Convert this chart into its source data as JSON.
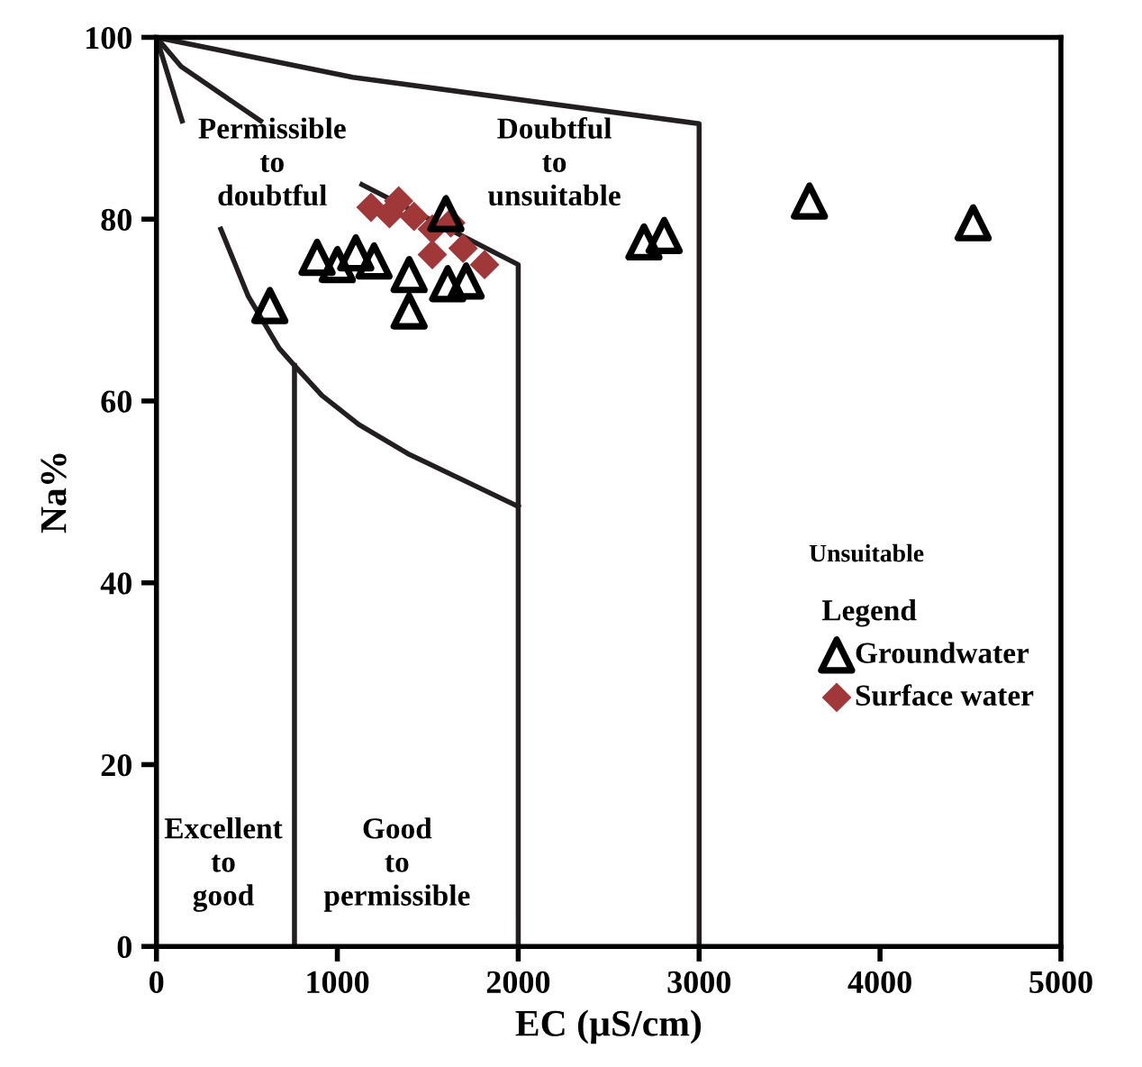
{
  "chart_data": {
    "type": "scatter",
    "xlabel": "EC (µS/cm)",
    "ylabel": "Na%",
    "xlim": [
      0,
      5000
    ],
    "ylim": [
      0,
      100
    ],
    "xticks": [
      0,
      1000,
      2000,
      3000,
      4000,
      5000
    ],
    "yticks": [
      0,
      20,
      40,
      60,
      80,
      100
    ],
    "grid": false,
    "legend": "right",
    "legend_title": "Legend",
    "series": [
      {
        "name": "Groundwater",
        "marker": "triangle",
        "color": "#000000",
        "x": [
          627,
          888,
          1000,
          1102,
          1203,
          1397,
          1397,
          1610,
          1712,
          1600,
          2695,
          2807,
          3610,
          4515
        ],
        "values": [
          70.5,
          75.8,
          75,
          76.3,
          75.4,
          73.9,
          69.9,
          72.9,
          73.2,
          80.6,
          77.5,
          78.2,
          82,
          79.6
        ]
      },
      {
        "name": "Surface water",
        "marker": "diamond",
        "color": "#a0383a",
        "x": [
          1186,
          1288,
          1339,
          1424,
          1525,
          1525,
          1627,
          1695,
          1814
        ],
        "values": [
          81.3,
          80.6,
          82,
          80.3,
          78.9,
          76.1,
          79.6,
          76.8,
          75
        ]
      },
      {
        "type": "line",
        "marker": "none",
        "color": "#231f20",
        "x": [
          0,
          1085,
          3000,
          3000
        ],
        "values": [
          100,
          95.6,
          90.5,
          0
        ]
      },
      {
        "type": "line",
        "marker": "none",
        "color": "#231f20",
        "x": [
          0,
          136,
          576
        ],
        "values": [
          100,
          96.8,
          90.8
        ]
      },
      {
        "type": "line",
        "marker": "none",
        "color": "#231f20",
        "x": [
          0,
          142
        ],
        "values": [
          100,
          90.8
        ]
      },
      {
        "type": "line",
        "marker": "none",
        "color": "#231f20",
        "x": [
          356,
          508,
          678,
          763,
          915,
          1119,
          1390,
          2000
        ],
        "values": [
          78.9,
          71.5,
          65.8,
          63.9,
          60.6,
          57.4,
          54.2,
          48.4
        ]
      },
      {
        "type": "line",
        "marker": "none",
        "color": "#231f20",
        "x": [
          763,
          763
        ],
        "values": [
          63.9,
          0
        ]
      },
      {
        "type": "line",
        "marker": "none",
        "color": "#231f20",
        "x": [
          1136,
          2000,
          2000
        ],
        "values": [
          83.8,
          75,
          0
        ]
      }
    ],
    "annotations": [
      "Permissible\nto\ndoubtful",
      "Doubtful\nto\nunsuitable",
      "Unsuitable",
      "Excellent\nto\ngood",
      "Good\nto\npermissible"
    ]
  }
}
